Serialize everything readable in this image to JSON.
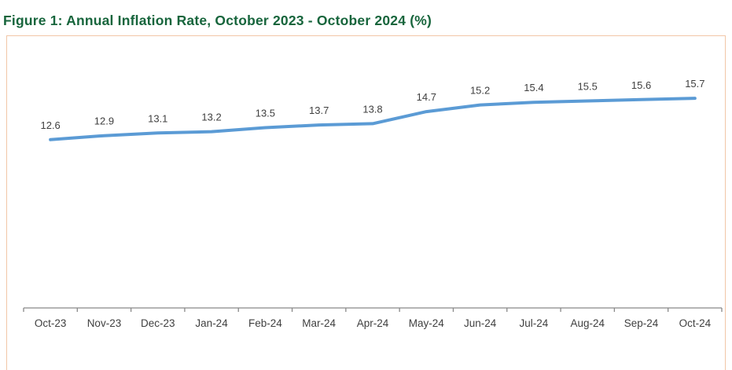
{
  "figure": {
    "title": "Figure 1: Annual Inflation Rate, October 2023 - October 2024 (%)"
  },
  "colors": {
    "title_text": "#17653C",
    "line": "#5B9BD5",
    "data_label": "#404040",
    "axis_line": "#898989",
    "axis_label": "#404040",
    "frame_border": "#F2C7A7",
    "background": "#FFFFFF"
  },
  "chart_data": {
    "type": "line",
    "title": "Figure 1: Annual Inflation Rate, October 2023 - October 2024 (%)",
    "categories": [
      "Oct-23",
      "Nov-23",
      "Dec-23",
      "Jan-24",
      "Feb-24",
      "Mar-24",
      "Apr-24",
      "May-24",
      "Jun-24",
      "Jul-24",
      "Aug-24",
      "Sep-24",
      "Oct-24"
    ],
    "series": [
      {
        "name": "Annual Inflation Rate (%)",
        "values": [
          12.6,
          12.9,
          13.1,
          13.2,
          13.5,
          13.7,
          13.8,
          14.7,
          15.2,
          15.4,
          15.5,
          15.6,
          15.7
        ]
      }
    ],
    "data_labels": true,
    "xlabel": "",
    "ylabel": "",
    "ylim": [
      0,
      20
    ],
    "grid": false,
    "legend": "none",
    "y_axis_visible": false
  }
}
